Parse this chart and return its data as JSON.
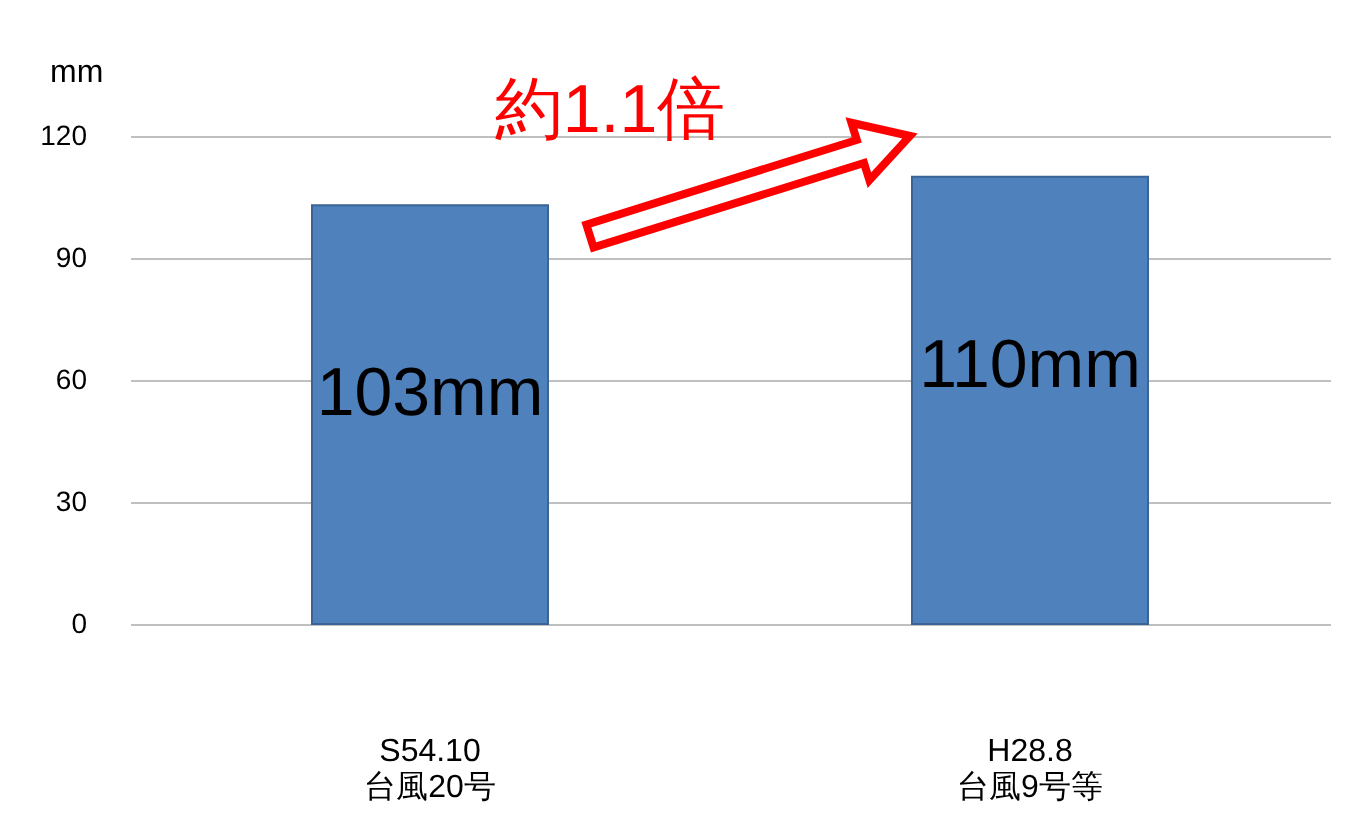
{
  "chart_data": {
    "type": "bar",
    "ylabel": "mm",
    "categories": [
      "S54.10\n台風20号",
      "H28.8\n台風9号等"
    ],
    "values": [
      103,
      110
    ],
    "value_labels": [
      "103mm",
      "110mm"
    ],
    "color": "#4f81bd",
    "ylim": [
      0,
      120
    ],
    "yticks": [
      0,
      30,
      60,
      90,
      120
    ],
    "grid": "y",
    "annotations": [
      "約1.1倍"
    ]
  }
}
